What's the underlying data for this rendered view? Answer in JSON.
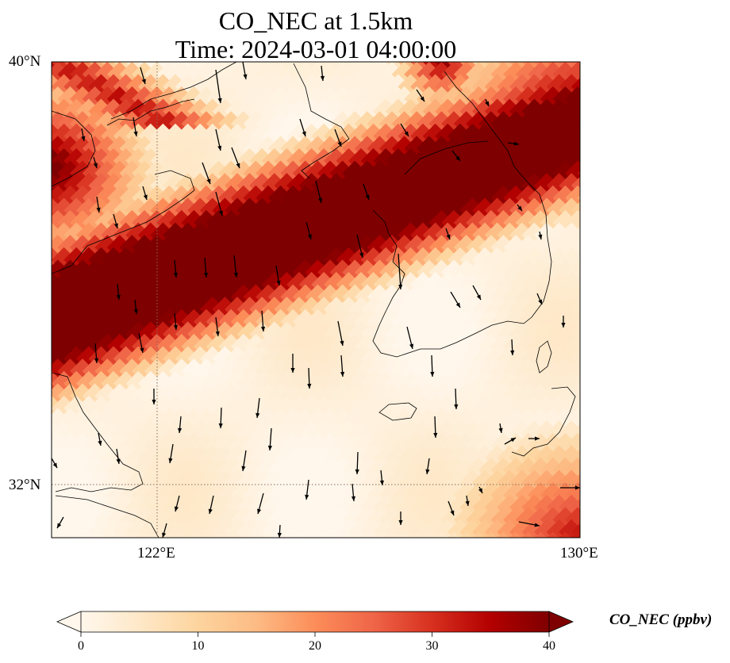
{
  "title": {
    "line1": "CO_NEC at 1.5km",
    "line2": "Time: 2024-03-01 04:00:00"
  },
  "axes": {
    "lat_ticks": [
      "40°N",
      "32°N"
    ],
    "lon_ticks": [
      "122°E",
      "130°E"
    ],
    "lat_range": [
      31,
      40
    ],
    "lon_range": [
      120,
      130
    ]
  },
  "colorbar": {
    "label": "CO_NEC (ppbv)",
    "ticks": [
      "0",
      "10",
      "20",
      "30",
      "40"
    ],
    "range": [
      0,
      40
    ],
    "colormap": [
      "#fff7ec",
      "#fee8c8",
      "#fdd49e",
      "#fdbb84",
      "#fc8d59",
      "#ef6548",
      "#d7301f",
      "#b30000",
      "#7f0000"
    ],
    "extend": "both"
  },
  "map": {
    "gridline_color": "#8a6a5a",
    "coastline_color": "#000000",
    "arrow_color": "#000000"
  }
}
